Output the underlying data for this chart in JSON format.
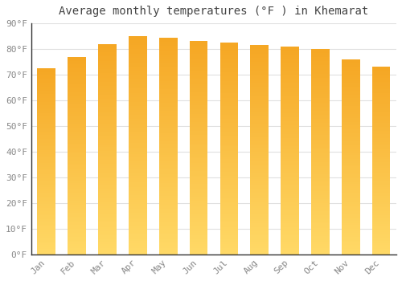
{
  "months": [
    "Jan",
    "Feb",
    "Mar",
    "Apr",
    "May",
    "Jun",
    "Jul",
    "Aug",
    "Sep",
    "Oct",
    "Nov",
    "Dec"
  ],
  "values": [
    72.5,
    77.0,
    82.0,
    85.0,
    84.5,
    83.0,
    82.5,
    81.5,
    81.0,
    80.0,
    76.0,
    73.0
  ],
  "bar_color_top": "#F5A623",
  "bar_color_bottom": "#FFD966",
  "title": "Average monthly temperatures (°F ) in Khemarat",
  "ylim": [
    0,
    90
  ],
  "yticks": [
    0,
    10,
    20,
    30,
    40,
    50,
    60,
    70,
    80,
    90
  ],
  "ytick_labels": [
    "0°F",
    "10°F",
    "20°F",
    "30°F",
    "40°F",
    "50°F",
    "60°F",
    "70°F",
    "80°F",
    "90°F"
  ],
  "bg_color": "#ffffff",
  "grid_color": "#e0e0e0",
  "title_fontsize": 10,
  "tick_fontsize": 8,
  "font_color": "#888888",
  "bar_width": 0.6,
  "num_gradient_steps": 100
}
